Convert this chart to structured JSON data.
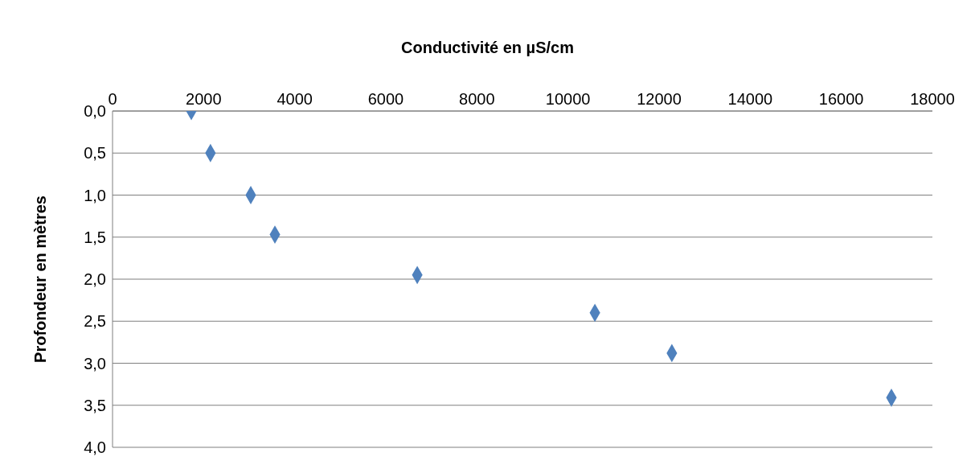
{
  "chart_data": {
    "type": "scatter",
    "xlabel": "Conductivité en µS/cm",
    "ylabel": "Profondeur en mètres",
    "x": [
      1730,
      2150,
      3035,
      3565,
      6690,
      10590,
      12280,
      17100
    ],
    "values": [
      0,
      0.5,
      1.0,
      1.47,
      1.95,
      2.4,
      2.88,
      3.41
    ],
    "color": "#4f81bd",
    "marker": "diamond",
    "grid": "y",
    "legend": false,
    "xlim": [
      0,
      18000
    ],
    "xticks": [
      0,
      2000,
      4000,
      6000,
      8000,
      10000,
      12000,
      14000,
      16000,
      18000
    ],
    "ylim": [
      4,
      0
    ],
    "yticks": [
      {
        "value": 0,
        "label": "0,0"
      },
      {
        "value": 0.5,
        "label": "0,5"
      },
      {
        "value": 1,
        "label": "1,0"
      },
      {
        "value": 1.5,
        "label": "1,5"
      },
      {
        "value": 2,
        "label": "2,0"
      },
      {
        "value": 2.5,
        "label": "2,5"
      },
      {
        "value": 3,
        "label": "3,0"
      },
      {
        "value": 3.5,
        "label": "3,5"
      },
      {
        "value": 4,
        "label": "4,0"
      }
    ]
  }
}
